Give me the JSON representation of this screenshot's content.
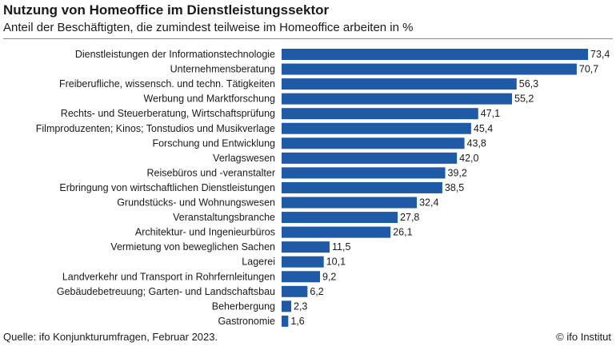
{
  "header": {
    "title": "Nutzung von Homeoffice im Dienstleistungssektor",
    "subtitle": "Anteil der Beschäftigten, die zumindest teilweise im Homeoffice arbeiten in %"
  },
  "footer": {
    "source": "Quelle: ifo Konjunkturumfragen, Februar 2023.",
    "copyright": "© ifo Institut"
  },
  "colors": {
    "bar": "#1f5aa6"
  },
  "chart_data": {
    "type": "bar",
    "orientation": "horizontal",
    "title": "Nutzung von Homeoffice im Dienstleistungssektor",
    "subtitle": "Anteil der Beschäftigten, die zumindest teilweise im Homeoffice arbeiten in %",
    "categories": [
      "Dienstleistungen der Informationstechnologie",
      "Unternehmensberatung",
      "Freiberufliche, wissensch. und techn. Tätigkeiten",
      "Werbung und Marktforschung",
      "Rechts- und Steuerberatung, Wirtschaftsprüfung",
      "Filmproduzenten; Kinos; Tonstudios und Musikverlage",
      "Forschung und Entwicklung",
      "Verlagswesen",
      "Reisebüros und -veranstalter",
      "Erbringung von wirtschaftlichen Dienstleistungen",
      "Grundstücks- und Wohnungswesen",
      "Veranstaltungsbranche",
      "Architektur- und Ingenieurbüros",
      "Vermietung von beweglichen Sachen",
      "Lagerei",
      "Landverkehr und Transport in Rohrfernleitungen",
      "Gebäudebetreuung; Garten- und Landschaftsbau",
      "Beherbergung",
      "Gastronomie"
    ],
    "values": [
      73.4,
      70.7,
      56.3,
      55.2,
      47.1,
      45.4,
      43.8,
      42.0,
      39.2,
      38.5,
      32.4,
      27.8,
      26.1,
      11.5,
      10.1,
      9.2,
      6.2,
      2.3,
      1.6
    ],
    "value_labels": [
      "73,4",
      "70,7",
      "56,3",
      "55,2",
      "47,1",
      "45,4",
      "43,8",
      "42,0",
      "39,2",
      "38,5",
      "32,4",
      "27,8",
      "26,1",
      "11,5",
      "10,1",
      "9,2",
      "6,2",
      "2,3",
      "1,6"
    ],
    "xlim": [
      0,
      73.4
    ],
    "grid": false,
    "legend": "none"
  }
}
